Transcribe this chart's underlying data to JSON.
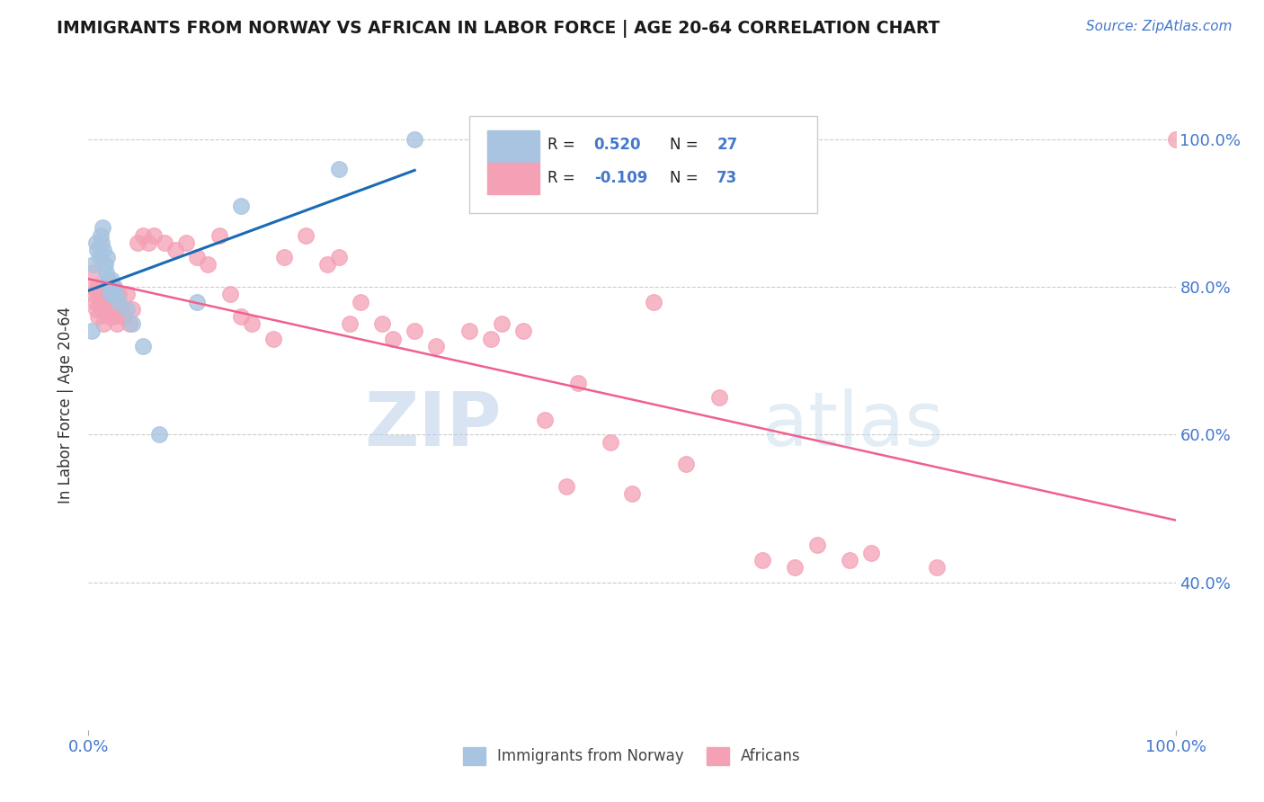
{
  "title": "IMMIGRANTS FROM NORWAY VS AFRICAN IN LABOR FORCE | AGE 20-64 CORRELATION CHART",
  "source_text": "Source: ZipAtlas.com",
  "ylabel": "In Labor Force | Age 20-64",
  "norway_r": 0.52,
  "norway_n": 27,
  "african_r": -0.109,
  "african_n": 73,
  "norway_color": "#a8c4e0",
  "african_color": "#f4a0b5",
  "norway_line_color": "#1a6bb5",
  "african_line_color": "#f06090",
  "title_color": "#1a1a1a",
  "axis_color": "#4477cc",
  "watermark_zip_color": "#b0c8e8",
  "watermark_atlas_color": "#c8dce8",
  "norway_points_x": [
    0.3,
    0.5,
    0.7,
    0.8,
    1.0,
    1.1,
    1.2,
    1.3,
    1.4,
    1.5,
    1.6,
    1.7,
    1.8,
    1.9,
    2.0,
    2.1,
    2.2,
    2.5,
    2.8,
    3.5,
    4.0,
    5.0,
    6.5,
    10.0,
    14.0,
    23.0,
    30.0
  ],
  "norway_points_y": [
    74.0,
    83.0,
    86.0,
    85.0,
    84.0,
    87.0,
    86.0,
    88.0,
    85.0,
    83.0,
    82.0,
    84.0,
    81.0,
    80.0,
    79.0,
    81.0,
    80.0,
    79.0,
    78.0,
    77.0,
    75.0,
    72.0,
    60.0,
    78.0,
    91.0,
    96.0,
    100.0
  ],
  "african_points_x": [
    0.3,
    0.4,
    0.5,
    0.6,
    0.7,
    0.8,
    0.9,
    1.0,
    1.1,
    1.2,
    1.3,
    1.4,
    1.5,
    1.6,
    1.7,
    1.8,
    1.9,
    2.0,
    2.1,
    2.2,
    2.3,
    2.4,
    2.5,
    2.6,
    2.8,
    3.0,
    3.2,
    3.5,
    3.8,
    4.0,
    4.5,
    5.0,
    5.5,
    6.0,
    7.0,
    8.0,
    9.0,
    10.0,
    11.0,
    12.0,
    13.0,
    14.0,
    15.0,
    17.0,
    18.0,
    20.0,
    22.0,
    23.0,
    24.0,
    25.0,
    27.0,
    28.0,
    30.0,
    32.0,
    35.0,
    37.0,
    38.0,
    40.0,
    42.0,
    44.0,
    45.0,
    48.0,
    50.0,
    52.0,
    55.0,
    58.0,
    62.0,
    65.0,
    67.0,
    70.0,
    72.0,
    78.0,
    100.0
  ],
  "african_points_y": [
    80.0,
    82.0,
    79.0,
    78.0,
    77.0,
    80.0,
    76.0,
    79.0,
    78.0,
    77.0,
    80.0,
    75.0,
    78.0,
    79.0,
    77.0,
    80.0,
    76.0,
    79.0,
    77.0,
    78.0,
    76.0,
    80.0,
    78.0,
    75.0,
    79.0,
    77.0,
    76.0,
    79.0,
    75.0,
    77.0,
    86.0,
    87.0,
    86.0,
    87.0,
    86.0,
    85.0,
    86.0,
    84.0,
    83.0,
    87.0,
    79.0,
    76.0,
    75.0,
    73.0,
    84.0,
    87.0,
    83.0,
    84.0,
    75.0,
    78.0,
    75.0,
    73.0,
    74.0,
    72.0,
    74.0,
    73.0,
    75.0,
    74.0,
    62.0,
    53.0,
    67.0,
    59.0,
    52.0,
    78.0,
    56.0,
    65.0,
    43.0,
    42.0,
    45.0,
    43.0,
    44.0,
    42.0,
    100.0
  ],
  "xlim": [
    0,
    100
  ],
  "ylim": [
    20,
    108
  ],
  "xtick_labels": [
    "0.0%",
    "100.0%"
  ],
  "ytick_labels_right": [
    "40.0%",
    "60.0%",
    "80.0%",
    "100.0%"
  ],
  "ytick_vals": [
    40,
    60,
    80,
    100
  ],
  "grid_color": "#cccccc",
  "background_color": "#ffffff",
  "figsize": [
    14.06,
    8.92
  ],
  "dpi": 100
}
